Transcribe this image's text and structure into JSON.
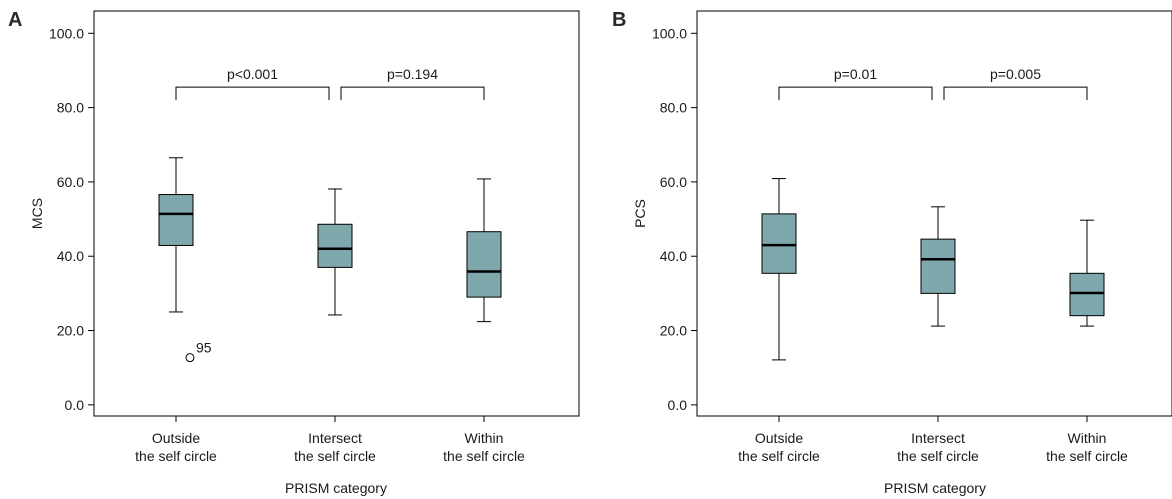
{
  "chart_data": [
    {
      "type": "box",
      "panel_label": "A",
      "ylabel": "MCS",
      "xlabel": "PRISM category",
      "ylim": [
        -3,
        106
      ],
      "yticks": [
        0,
        20,
        40,
        60,
        80,
        100
      ],
      "ytick_labels": [
        "0.0",
        "20.0",
        "40.0",
        "60.0",
        "80.0",
        "100.0"
      ],
      "categories": [
        [
          "Outside",
          "the self circle"
        ],
        [
          "Intersect",
          "the self circle"
        ],
        [
          "Within",
          "the self circle"
        ]
      ],
      "boxes": [
        {
          "whisker_low": 25.0,
          "q1": 42.9,
          "median": 51.4,
          "q3": 56.6,
          "whisker_high": 66.5
        },
        {
          "whisker_low": 24.2,
          "q1": 37.0,
          "median": 42.0,
          "q3": 48.6,
          "whisker_high": 58.1
        },
        {
          "whisker_low": 22.4,
          "q1": 29.0,
          "median": 35.9,
          "q3": 46.6,
          "whisker_high": 60.8
        }
      ],
      "outliers": [
        {
          "category_index": 0,
          "value": 12.7,
          "label": "95"
        }
      ],
      "comparisons": [
        {
          "from": 0,
          "to": 1,
          "y": 85.5,
          "label": "p<0.001"
        },
        {
          "from": 1,
          "to": 2,
          "y": 85.5,
          "label": "p=0.194"
        }
      ],
      "box_color": "#7fa8ad",
      "grid": false
    },
    {
      "type": "box",
      "panel_label": "B",
      "ylabel": "PCS",
      "xlabel": "PRISM category",
      "ylim": [
        -3,
        106
      ],
      "yticks": [
        0,
        20,
        40,
        60,
        80,
        100
      ],
      "ytick_labels": [
        "0.0",
        "20.0",
        "40.0",
        "60.0",
        "80.0",
        "100.0"
      ],
      "categories": [
        [
          "Outside",
          "the self circle"
        ],
        [
          "Intersect",
          "the self circle"
        ],
        [
          "Within",
          "the self circle"
        ]
      ],
      "boxes": [
        {
          "whisker_low": 12.1,
          "q1": 35.4,
          "median": 43.0,
          "q3": 51.4,
          "whisker_high": 60.9
        },
        {
          "whisker_low": 21.2,
          "q1": 30.0,
          "median": 39.2,
          "q3": 44.6,
          "whisker_high": 53.3
        },
        {
          "whisker_low": 21.2,
          "q1": 24.0,
          "median": 30.1,
          "q3": 35.4,
          "whisker_high": 49.7
        }
      ],
      "outliers": [],
      "comparisons": [
        {
          "from": 0,
          "to": 1,
          "y": 85.5,
          "label": "p=0.01"
        },
        {
          "from": 1,
          "to": 2,
          "y": 85.5,
          "label": "p=0.005"
        }
      ],
      "box_color": "#7fa8ad",
      "grid": false
    }
  ]
}
